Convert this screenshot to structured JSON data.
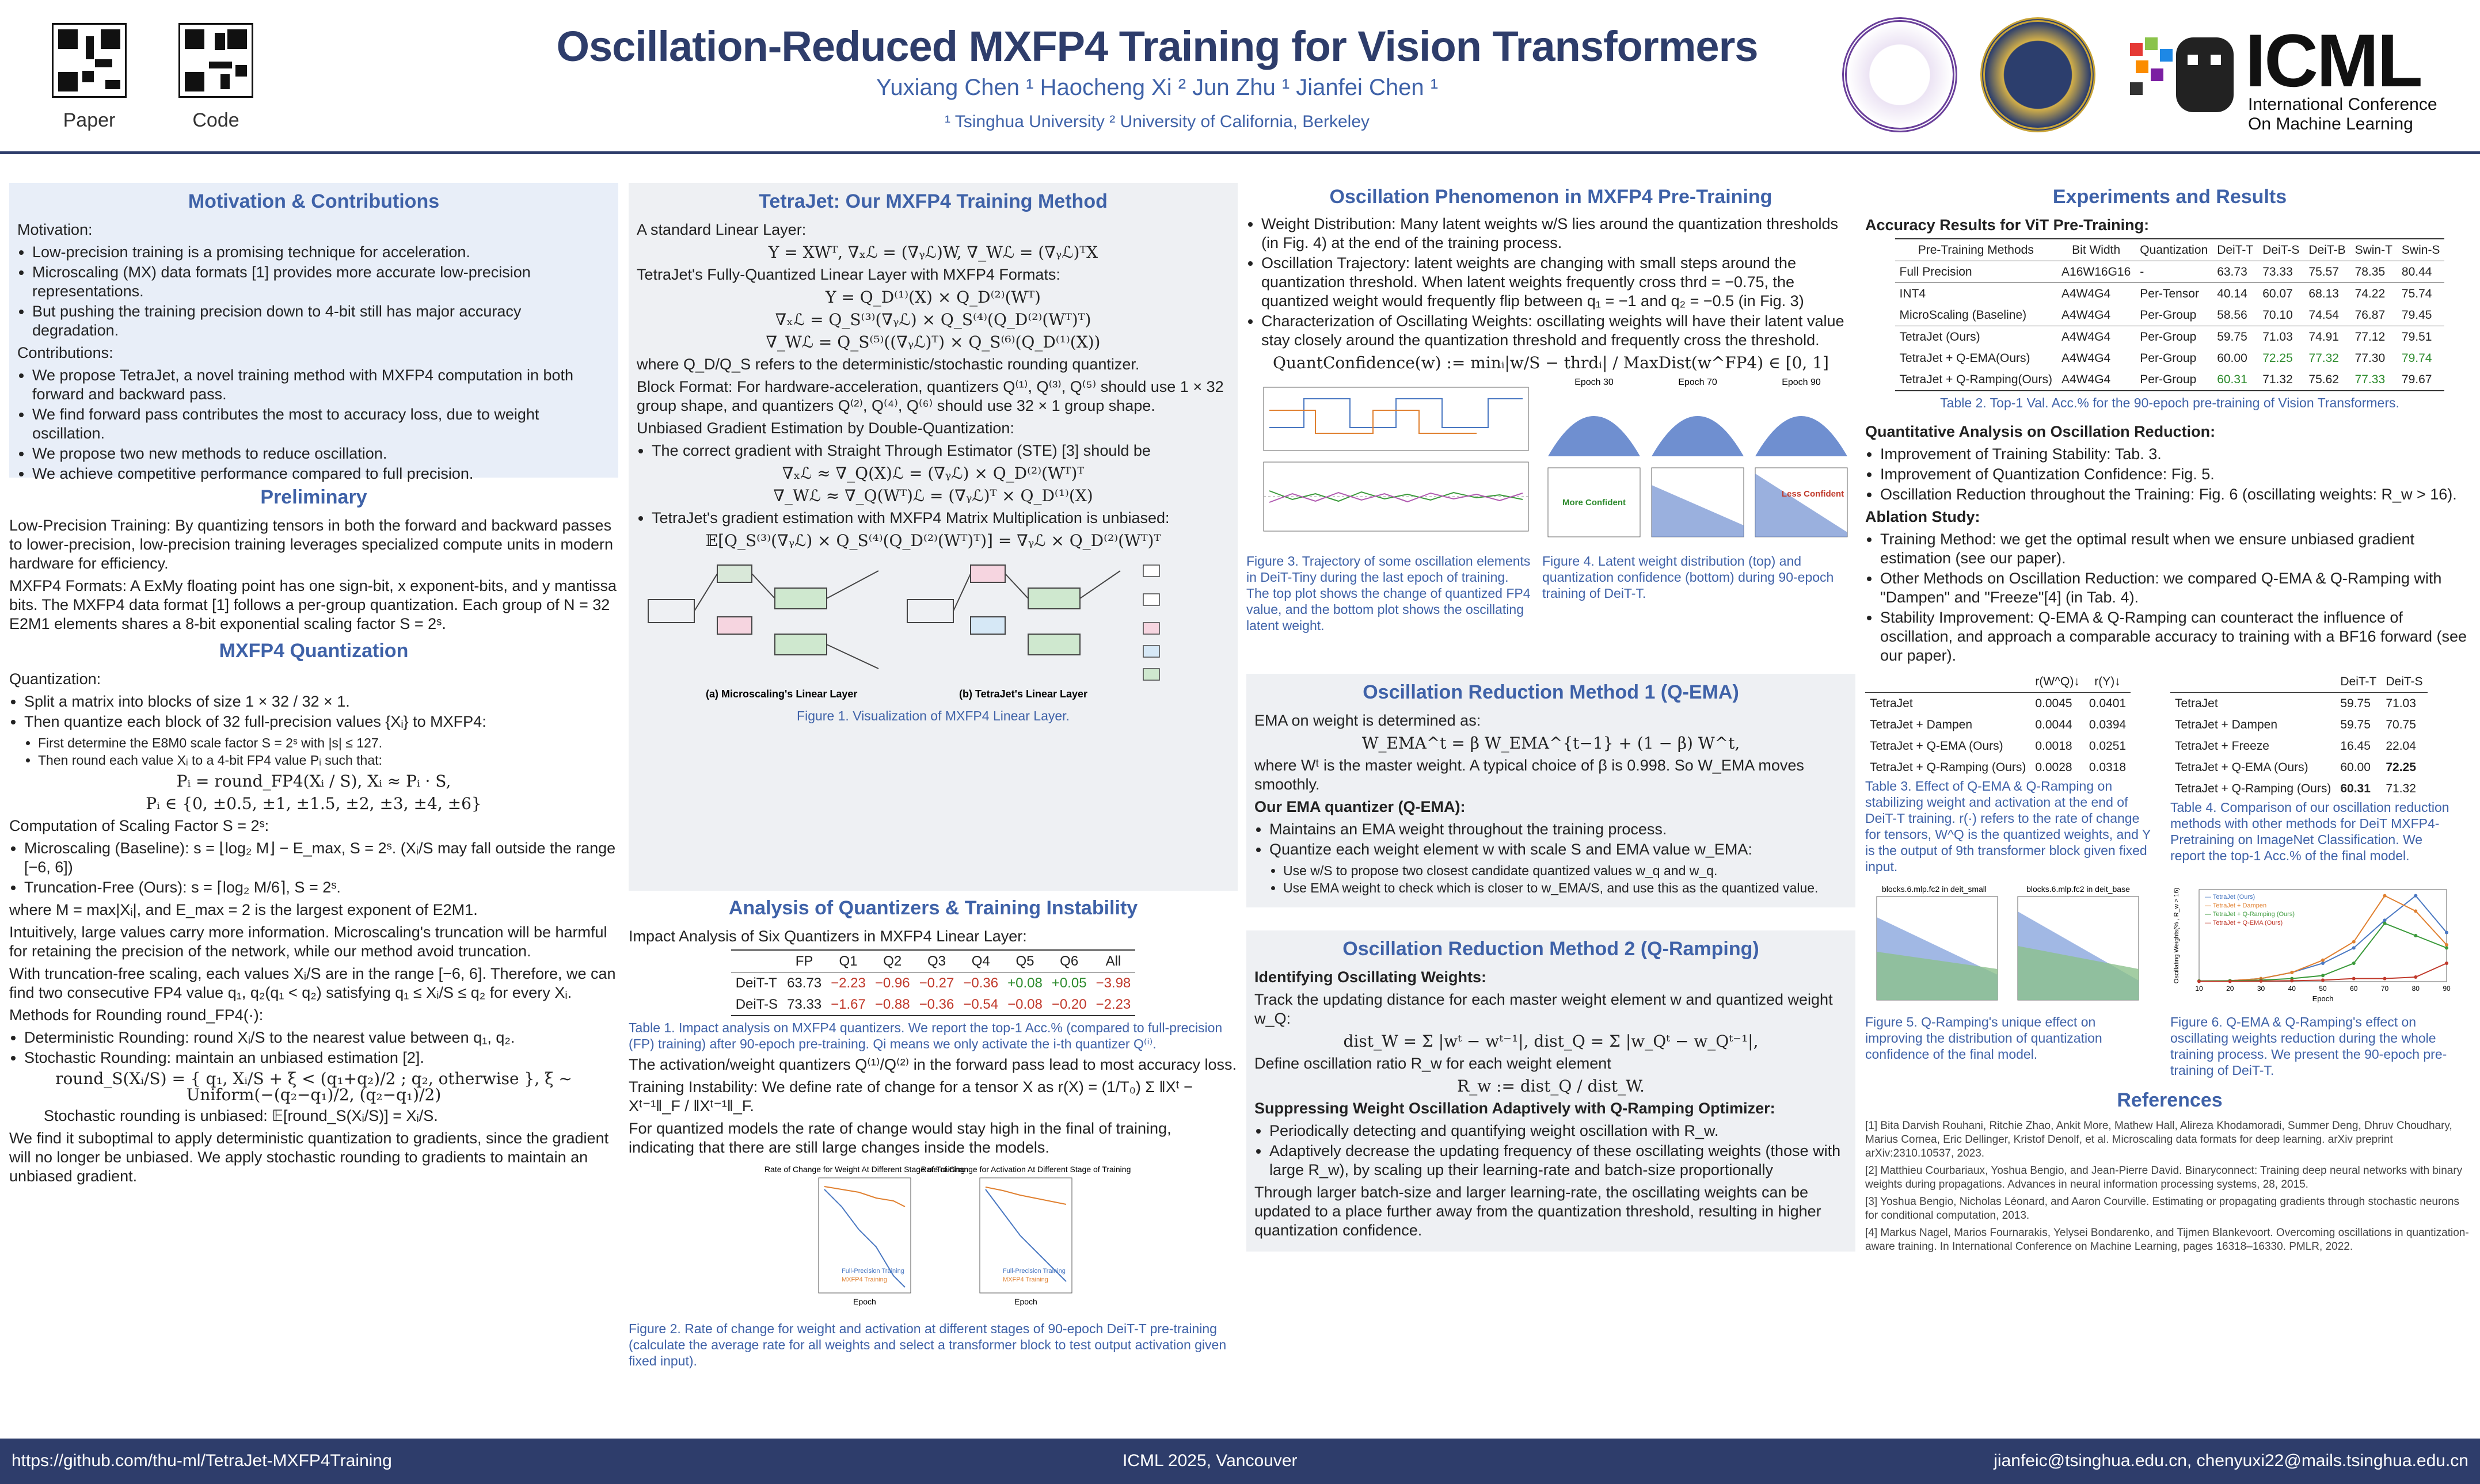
{
  "header": {
    "qr_paper_label": "Paper",
    "qr_code_label": "Code",
    "title": "Oscillation-Reduced MXFP4 Training for Vision Transformers",
    "authors": "Yuxiang Chen ¹     Haocheng Xi ²     Jun Zhu ¹     Jianfei Chen ¹",
    "affiliations": "¹ Tsinghua University      ² University of California, Berkeley",
    "icml": "ICML",
    "icml_sub1": "International Conference",
    "icml_sub2": "On Machine Learning"
  },
  "col1": {
    "motivation_title": "Motivation & Contributions",
    "motivation_head": "Motivation:",
    "motivation_items": [
      "Low-precision training is a promising technique for acceleration.",
      "Microscaling (MX) data formats [1] provides more accurate low-precision representations.",
      "But pushing the training precision down to 4-bit still has major accuracy degradation."
    ],
    "contrib_head": "Contributions:",
    "contrib_items": [
      "We propose TetraJet, a novel training method with MXFP4 computation in both forward and backward pass.",
      "We find forward pass contributes the most to accuracy loss, due to weight oscillation.",
      "We propose two new methods to reduce oscillation.",
      "We achieve competitive performance compared to full precision."
    ],
    "prelim_title": "Preliminary",
    "prelim_p1": "Low-Precision Training: By quantizing tensors in both the forward and backward passes to lower-precision, low-precision training leverages specialized compute units in modern hardware for efficiency.",
    "prelim_p2": "MXFP4 Formats: A ExMy floating point has one sign-bit, x exponent-bits, and y mantissa bits. The MXFP4 data format [1] follows a per-group quantization. Each group of N = 32 E2M1 elements shares a 8-bit exponential scaling factor S = 2ˢ.",
    "mxq_title": "MXFP4 Quantization",
    "quant_head": "Quantization:",
    "quant_items": [
      "Split a matrix into blocks of size 1 × 32 / 32 × 1.",
      "Then quantize each block of 32 full-precision values {Xᵢ} to MXFP4:"
    ],
    "quant_sub": [
      "First determine the E8M0 scale factor S = 2ˢ with |s| ≤ 127.",
      "Then round each value Xᵢ to a 4-bit FP4 value Pᵢ such that:"
    ],
    "quant_eq1": "Pᵢ = round_FP4(Xᵢ / S),     Xᵢ ≈ Pᵢ · S,",
    "quant_eq2": "Pᵢ ∈ {0, ±0.5, ±1, ±1.5, ±2, ±3, ±4, ±6}",
    "scale_head": "Computation of Scaling Factor S = 2ˢ:",
    "scale_items": [
      "Microscaling (Baseline): s = ⌊log₂ M⌋ − E_max,  S = 2ˢ.  (Xᵢ/S may fall outside the range [−6, 6])",
      "Truncation-Free (Ours): s = ⌈log₂ M/6⌉,  S = 2ˢ."
    ],
    "scale_p1": "where M = max|Xᵢ|, and E_max = 2 is the largest exponent of E2M1.",
    "scale_p2": "Intuitively, large values carry more information. Microscaling's truncation will be harmful for retaining the precision of the network, while our method avoid truncation.",
    "scale_p3": "With truncation-free scaling, each values Xᵢ/S are in the range [−6, 6]. Therefore, we can find two consecutive FP4 value q₁, q₂(q₁ < q₂) satisfying q₁ ≤ Xᵢ/S ≤ q₂ for every Xᵢ.",
    "round_head": "Methods for Rounding round_FP4(·):",
    "round_items": [
      "Deterministic Rounding: round Xᵢ/S to the nearest value between q₁, q₂.",
      "Stochastic Rounding: maintain an unbiased estimation [2]."
    ],
    "round_eq": "round_S(Xᵢ/S) = { q₁, Xᵢ/S + ξ < (q₁+q₂)/2 ; q₂, otherwise },   ξ ~ Uniform(−(q₂−q₁)/2, (q₂−q₁)/2)",
    "round_unbiased": "Stochastic rounding is unbiased: 𝔼[round_S(Xᵢ/S)] = Xᵢ/S.",
    "round_final": "We find it suboptimal to apply deterministic quantization to gradients, since the gradient will no longer be unbiased. We apply stochastic rounding to gradients to maintain an unbiased gradient."
  },
  "col2": {
    "title": "TetraJet: Our MXFP4 Training Method",
    "linear_head": "A standard Linear Layer:",
    "linear_eq": "Y = XWᵀ,   ∇ₓℒ = (∇ᵧℒ)W,   ∇_Wℒ = (∇ᵧℒ)ᵀX",
    "fq_head": "TetraJet's Fully-Quantized Linear Layer with MXFP4 Formats:",
    "fq_eq": [
      "Y = Q_D⁽¹⁾(X) × Q_D⁽²⁾(Wᵀ)",
      "∇ₓℒ = Q_S⁽³⁾(∇ᵧℒ) × Q_S⁽⁴⁾(Q_D⁽²⁾(Wᵀ)ᵀ)",
      "∇_Wℒ = Q_S⁽⁵⁾((∇ᵧℒ)ᵀ) × Q_S⁽⁶⁾(Q_D⁽¹⁾(X))"
    ],
    "fq_where": "where Q_D/Q_S refers to the deterministic/stochastic rounding quantizer.",
    "block_format": "Block Format: For hardware-acceleration, quantizers Q⁽¹⁾, Q⁽³⁾, Q⁽⁵⁾ should use 1 × 32 group shape, and quantizers Q⁽²⁾, Q⁽⁴⁾, Q⁽⁶⁾ should use 32 × 1 group shape.",
    "unbiased_head": "Unbiased Gradient Estimation by Double-Quantization:",
    "unbiased_items": [
      "The correct gradient with Straight Through Estimator (STE) [3] should be",
      "TetraJet's gradient estimation with MXFP4 Matrix Multiplication is unbiased:"
    ],
    "ste_eq": [
      "∇ₓℒ ≈ ∇_Q(X)ℒ = (∇ᵧℒ) × Q_D⁽²⁾(Wᵀ)ᵀ",
      "∇_Wℒ ≈ ∇_Q(Wᵀ)ℒ = (∇ᵧℒ)ᵀ × Q_D⁽¹⁾(X)"
    ],
    "exp_eq": "𝔼[Q_S⁽³⁾(∇ᵧℒ) × Q_S⁽⁴⁾(Q_D⁽²⁾(Wᵀ)ᵀ)] = ∇ᵧℒ × Q_D⁽²⁾(Wᵀ)ᵀ",
    "fig1_sub_a": "(a) Microscaling's Linear Layer",
    "fig1_sub_b": "(b) TetraJet's Linear Layer",
    "fig1_cap": "Figure 1. Visualization of MXFP4 Linear Layer.",
    "analysis_title": "Analysis of Quantizers & Training Instability",
    "impact_head": "Impact Analysis of Six Quantizers in MXFP4 Linear Layer:",
    "table1_head": [
      "",
      "FP",
      "Q1",
      "Q2",
      "Q3",
      "Q4",
      "Q5",
      "Q6",
      "All"
    ],
    "table1_rows": [
      [
        "DeiT-T",
        "63.73",
        "−2.23",
        "−0.96",
        "−0.27",
        "−0.36",
        "+0.08",
        "+0.05",
        "−3.98"
      ],
      [
        "DeiT-S",
        "73.33",
        "−1.67",
        "−0.88",
        "−0.36",
        "−0.54",
        "−0.08",
        "−0.20",
        "−2.23"
      ]
    ],
    "table1_cap": "Table 1. Impact analysis on MXFP4 quantizers. We report the top-1 Acc.% (compared to full-precision (FP) training) after 90-epoch pre-training. Qi means we only activate the i-th quantizer Q⁽ⁱ⁾.",
    "table1_after": "The activation/weight quantizers Q⁽¹⁾/Q⁽²⁾ in the forward pass lead to most accuracy loss.",
    "instab": "Training Instability: We define rate of change for a tensor X as r(X) = (1/T₀) Σ ‖Xᵗ − Xᵗ⁻¹‖_F / ‖Xᵗ⁻¹‖_F.",
    "instab2": "For quantized models the rate of change would stay high in the final of training, indicating that there are still large changes inside the models.",
    "fig2_cap": "Figure 2. Rate of change for weight and activation at different stages of 90-epoch DeiT-T pre-training (calculate the average rate for all weights and select a transformer block to test output activation given fixed input)."
  },
  "col3": {
    "osc_title": "Oscillation Phenomenon in MXFP4 Pre-Training",
    "osc_items": [
      "Weight Distribution: Many latent weights w/S lies around the quantization thresholds (in Fig. 4) at the end of the training process.",
      "Oscillation Trajectory: latent weights are changing with small steps around the quantization threshold. When latent weights frequently cross thrd = −0.75, the quantized weight would frequently flip between q₁ = −1 and q₂ = −0.5 (in Fig. 3)",
      "Characterization of Oscillating Weights: oscillating weights will have their latent value stay closely around the quantization threshold and frequently cross the threshold."
    ],
    "conf_eq": "QuantConfidence(w) := minᵢ|w/S − thrdᵢ| / MaxDist(w^FP4) ∈ [0, 1]",
    "fig3_cap": "Figure 3. Trajectory of some oscillation elements in DeiT-Tiny during the last epoch of training. The top plot shows the change of quantized FP4 value, and the bottom plot shows the oscillating latent weight.",
    "fig4_cap": "Figure 4. Latent weight distribution (top) and quantization confidence (bottom) during 90-epoch training of DeiT-T.",
    "fig4_epochs": [
      "Epoch 30",
      "Epoch 70",
      "Epoch 90"
    ],
    "fig4_more": "More Confident",
    "fig4_less": "Less Confident",
    "m1_title": "Oscillation Reduction Method 1 (Q-EMA)",
    "m1_p1": "EMA on weight is determined as:",
    "m1_eq": "W_EMA^t = β W_EMA^{t−1} + (1 − β) W^t,",
    "m1_p2": "where Wᵗ is the master weight. A typical choice of β is 0.998. So W_EMA moves smoothly.",
    "m1_head": "Our EMA quantizer (Q-EMA):",
    "m1_items": [
      "Maintains an EMA weight throughout the training process.",
      "Quantize each weight element w with scale S and EMA value w_EMA:"
    ],
    "m1_sub": [
      "Use w/S to propose two closest candidate quantized values w_q and w_q.",
      "Use EMA weight to check which is closer to w_EMA/S, and use this as the quantized value."
    ],
    "m2_title": "Oscillation Reduction Method 2 (Q-Ramping)",
    "m2_head": "Identifying Oscillating Weights:",
    "m2_p1": "Track the updating distance for each master weight element w and quantized weight w_Q:",
    "m2_eq": "dist_W = Σ |wᵗ − wᵗ⁻¹|,    dist_Q = Σ |w_Qᵗ − w_Qᵗ⁻¹|,",
    "m2_p2": "Define oscillation ratio R_w for each weight element",
    "m2_eq2": "R_w := dist_Q / dist_W.",
    "m2_head2": "Suppressing Weight Oscillation Adaptively with Q-Ramping Optimizer:",
    "m2_items": [
      "Periodically detecting and quantifying weight oscillation with R_w.",
      "Adaptively decrease the updating frequency of these oscillating weights (those with large R_w), by scaling up their learning-rate and batch-size proportionally"
    ],
    "m2_p3": "Through larger batch-size and larger learning-rate, the oscillating weights can be updated to a place further away from the quantization threshold, resulting in higher quantization confidence."
  },
  "col4": {
    "title": "Experiments and Results",
    "acc_head": "Accuracy Results for ViT Pre-Training:",
    "table2_head": [
      "Pre-Training Methods",
      "Bit Width",
      "Quantization",
      "DeiT-T",
      "DeiT-S",
      "DeiT-B",
      "Swin-T",
      "Swin-S"
    ],
    "table2_rows": [
      [
        "Full Precision",
        "A16W16G16",
        "-",
        "63.73",
        "73.33",
        "75.57",
        "78.35",
        "80.44"
      ],
      [
        "INT4",
        "A4W4G4",
        "Per-Tensor",
        "40.14",
        "60.07",
        "68.13",
        "74.22",
        "75.74"
      ],
      [
        "MicroScaling (Baseline)",
        "A4W4G4",
        "Per-Group",
        "58.56",
        "70.10",
        "74.54",
        "76.87",
        "79.45"
      ],
      [
        "TetraJet (Ours)",
        "A4W4G4",
        "Per-Group",
        "59.75",
        "71.03",
        "74.91",
        "77.12",
        "79.51"
      ],
      [
        "TetraJet + Q-EMA(Ours)",
        "A4W4G4",
        "Per-Group",
        "60.00",
        "72.25",
        "77.32",
        "77.30",
        "79.74"
      ],
      [
        "TetraJet + Q-Ramping(Ours)",
        "A4W4G4",
        "Per-Group",
        "60.31",
        "71.32",
        "75.62",
        "77.33",
        "79.67"
      ]
    ],
    "table2_cap": "Table 2. Top-1 Val. Acc.% for the 90-epoch pre-training of Vision Transformers.",
    "quant_head": "Quantitative Analysis on Oscillation Reduction:",
    "quant_items": [
      "Improvement of Training Stability: Tab. 3.",
      "Improvement of Quantization Confidence: Fig. 5.",
      "Oscillation Reduction throughout the Training: Fig. 6 (oscillating weights: R_w > 16)."
    ],
    "ablation_head": "Ablation Study:",
    "ablation_items": [
      "Training Method: we get the optimal result when we ensure unbiased gradient estimation (see our paper).",
      "Other Methods on Oscillation Reduction: we compared Q-EMA & Q-Ramping with \"Dampen\" and \"Freeze\"[4] (in Tab. 4).",
      "Stability Improvement: Q-EMA & Q-Ramping can counteract the influence of oscillation, and approach a comparable accuracy to training with a BF16 forward (see our paper)."
    ],
    "table3_head": [
      "",
      "r(W^Q)↓",
      "r(Y)↓"
    ],
    "table3_rows": [
      [
        "TetraJet",
        "0.0045",
        "0.0401"
      ],
      [
        "TetraJet + Dampen",
        "0.0044",
        "0.0394"
      ],
      [
        "TetraJet + Q-EMA (Ours)",
        "0.0018",
        "0.0251"
      ],
      [
        "TetraJet + Q-Ramping (Ours)",
        "0.0028",
        "0.0318"
      ]
    ],
    "table3_cap": "Table 3. Effect of Q-EMA & Q-Ramping on stabilizing weight and activation at the end of DeiT-T training. r(·) refers to the rate of change for tensors, W^Q is the quantized weights, and Y is the output of 9th transformer block given fixed input.",
    "table4_head": [
      "",
      "DeiT-T",
      "DeiT-S"
    ],
    "table4_rows": [
      [
        "TetraJet",
        "59.75",
        "71.03"
      ],
      [
        "TetraJet + Dampen",
        "59.75",
        "70.75"
      ],
      [
        "TetraJet + Freeze",
        "16.45",
        "22.04"
      ],
      [
        "TetraJet + Q-EMA (Ours)",
        "60.00",
        "72.25"
      ],
      [
        "TetraJet + Q-Ramping (Ours)",
        "60.31",
        "71.32"
      ]
    ],
    "table4_cap": "Table 4. Comparison of our oscillation reduction methods with other methods for DeiT MXFP4-Pretraining on ImageNet Classification. We report the top-1 Acc.% of the final model.",
    "fig5_titles": [
      "blocks.6.mlp.fc2 in deit_small",
      "blocks.6.mlp.fc2 in deit_base"
    ],
    "fig5_cap": "Figure 5. Q-Ramping's unique effect on improving the distribution of quantization confidence of the final model.",
    "fig6_cap": "Figure 6. Q-EMA & Q-Ramping's effect on oscillating weights reduction during the whole training process. We present the 90-epoch pre-training of DeiT-T.",
    "ref_title": "References",
    "refs": [
      "[1]  Bita Darvish Rouhani, Ritchie Zhao, Ankit More, Mathew Hall, Alireza Khodamoradi, Summer Deng, Dhruv Choudhary, Marius Cornea, Eric Dellinger, Kristof Denolf, et al. Microscaling data formats for deep learning. arXiv preprint arXiv:2310.10537, 2023.",
      "[2]  Matthieu Courbariaux, Yoshua Bengio, and Jean-Pierre David. Binaryconnect: Training deep neural networks with binary weights during propagations. Advances in neural information processing systems, 28, 2015.",
      "[3]  Yoshua Bengio, Nicholas Léonard, and Aaron Courville. Estimating or propagating gradients through stochastic neurons for conditional computation, 2013.",
      "[4]  Markus Nagel, Marios Fournarakis, Yelysei Bondarenko, and Tijmen Blankevoort. Overcoming oscillations in quantization-aware training. In International Conference on Machine Learning, pages 16318–16330. PMLR, 2022."
    ]
  },
  "fig6_data": {
    "x": [
      10,
      20,
      30,
      40,
      50,
      60,
      70,
      80,
      90
    ],
    "xlabel": "Epoch",
    "ylabel": "Oscillating Weights(% , R_w > 16)",
    "series": [
      {
        "name": "TetraJet (Ours)",
        "color": "#4a78c2",
        "values": [
          0.02,
          0.03,
          0.1,
          0.3,
          0.6,
          1.1,
          2.0,
          2.8,
          1.6
        ]
      },
      {
        "name": "TetraJet + Dampen",
        "color": "#e08030",
        "values": [
          0.02,
          0.03,
          0.1,
          0.3,
          0.7,
          1.3,
          2.8,
          2.3,
          1.2
        ]
      },
      {
        "name": "TetraJet + Q-Ramping (Ours)",
        "color": "#3a9a3a",
        "values": [
          0.02,
          0.03,
          0.05,
          0.1,
          0.2,
          0.6,
          1.9,
          1.5,
          1.1
        ]
      },
      {
        "name": "TetraJet + Q-EMA (Ours)",
        "color": "#c0392b",
        "values": [
          0.01,
          0.01,
          0.02,
          0.03,
          0.05,
          0.1,
          0.1,
          0.15,
          0.6
        ]
      }
    ]
  },
  "fig2_data": {
    "titles": [
      "Rate of Change for Weight At Different Stage of Training",
      "Rate of Change for Activation At Different Stage of Training"
    ],
    "xlabel": "Epoch",
    "ylabels": [
      "Rate of Change for Weight",
      "Rate of Change for Activation"
    ],
    "legend": [
      "Full-Precision Training",
      "MXFP4 Training"
    ]
  },
  "footer": {
    "url": "https://github.com/thu-ml/TetraJet-MXFP4Training",
    "venue": "ICML 2025, Vancouver",
    "emails": "jianfeic@tsinghua.edu.cn,     chenyuxi22@mails.tsinghua.edu.cn"
  }
}
